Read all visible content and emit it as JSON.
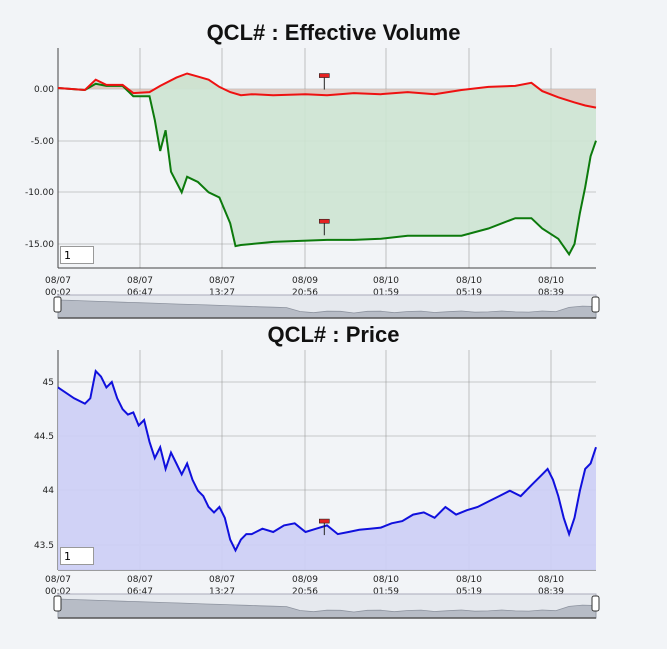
{
  "colors": {
    "ev_line": "#ee1111",
    "ev_fill": "#d8bcb0",
    "cum_line": "#0c7a0c",
    "cum_fill": "#cde4d2",
    "price_line": "#1010dd",
    "price_fill": "#cdd0f5",
    "grid": "#9a9a9a",
    "background": "#f2f4f7"
  },
  "chart_data": [
    {
      "type": "line",
      "title": "QCL# : Effective Volume",
      "x_ticks": [
        "08/07 00:02",
        "08/07 06:47",
        "08/07 13:27",
        "08/09 20:56",
        "08/10 01:59",
        "08/10 05:19",
        "08/10 08:39"
      ],
      "y_ticks": [
        "0.00",
        "-5.00",
        "-10.00",
        "-15.00"
      ],
      "ylim": [
        -17.2,
        3.9
      ],
      "input_value": "1",
      "series": [
        {
          "role": "upper",
          "x": [
            0,
            0.05,
            0.07,
            0.09,
            0.12,
            0.14,
            0.17,
            0.19,
            0.22,
            0.24,
            0.26,
            0.28,
            0.3,
            0.32,
            0.34,
            0.36,
            0.4,
            0.46,
            0.5,
            0.55,
            0.6,
            0.65,
            0.7,
            0.75,
            0.8,
            0.85,
            0.88,
            0.9,
            0.93,
            0.96,
            0.98,
            1
          ],
          "values": [
            0.1,
            -0.1,
            0.9,
            0.4,
            0.4,
            -0.4,
            -0.3,
            0.3,
            1.1,
            1.5,
            1.2,
            0.9,
            0.2,
            -0.3,
            -0.6,
            -0.5,
            -0.6,
            -0.5,
            -0.6,
            -0.4,
            -0.5,
            -0.3,
            -0.5,
            -0.1,
            0.2,
            0.3,
            0.6,
            -0.2,
            -0.8,
            -1.3,
            -1.6,
            -1.8
          ]
        },
        {
          "role": "lower",
          "x": [
            0,
            0.05,
            0.07,
            0.09,
            0.12,
            0.14,
            0.17,
            0.18,
            0.19,
            0.2,
            0.21,
            0.23,
            0.24,
            0.26,
            0.28,
            0.3,
            0.32,
            0.33,
            0.34,
            0.36,
            0.4,
            0.5,
            0.55,
            0.6,
            0.65,
            0.7,
            0.75,
            0.8,
            0.85,
            0.88,
            0.9,
            0.93,
            0.95,
            0.96,
            0.97,
            0.98,
            0.985,
            0.99,
            1
          ],
          "values": [
            0.1,
            -0.1,
            0.5,
            0.3,
            0.3,
            -0.7,
            -0.7,
            -3.0,
            -6.0,
            -4.0,
            -8.0,
            -10.0,
            -8.5,
            -9.0,
            -10.0,
            -10.5,
            -13.0,
            -15.2,
            -15.1,
            -15.0,
            -14.8,
            -14.6,
            -14.6,
            -14.5,
            -14.2,
            -14.2,
            -14.2,
            -13.5,
            -12.5,
            -12.5,
            -13.5,
            -14.5,
            -16.0,
            -15.0,
            -12.0,
            -9.5,
            -8.0,
            -6.5,
            -5.0
          ]
        }
      ],
      "markers": [
        {
          "x": 0.495,
          "y": 1.3
        },
        {
          "x": 0.495,
          "y": -12.8
        }
      ]
    },
    {
      "type": "area",
      "title": "QCL# : Price",
      "x_ticks": [
        "08/07 00:02",
        "08/07 06:47",
        "08/07 13:27",
        "08/09 20:56",
        "08/10 01:59",
        "08/10 05:19",
        "08/10 08:39"
      ],
      "y_ticks": [
        "45",
        "44.5",
        "44",
        "43.5"
      ],
      "ylim": [
        43.25,
        45.32
      ],
      "input_value": "1",
      "series": [
        {
          "name": "Price",
          "x": [
            0,
            0.03,
            0.05,
            0.06,
            0.07,
            0.08,
            0.09,
            0.1,
            0.11,
            0.12,
            0.13,
            0.14,
            0.15,
            0.16,
            0.17,
            0.18,
            0.19,
            0.2,
            0.21,
            0.22,
            0.23,
            0.24,
            0.25,
            0.26,
            0.27,
            0.28,
            0.29,
            0.3,
            0.31,
            0.32,
            0.33,
            0.34,
            0.35,
            0.36,
            0.38,
            0.4,
            0.42,
            0.44,
            0.46,
            0.48,
            0.5,
            0.52,
            0.54,
            0.56,
            0.58,
            0.6,
            0.62,
            0.64,
            0.66,
            0.68,
            0.7,
            0.72,
            0.74,
            0.76,
            0.78,
            0.8,
            0.82,
            0.84,
            0.86,
            0.88,
            0.89,
            0.9,
            0.91,
            0.92,
            0.93,
            0.94,
            0.95,
            0.96,
            0.97,
            0.98,
            0.99,
            1
          ],
          "values": [
            44.95,
            44.85,
            44.8,
            44.85,
            45.1,
            45.05,
            44.95,
            45.0,
            44.85,
            44.75,
            44.7,
            44.72,
            44.6,
            44.65,
            44.45,
            44.3,
            44.4,
            44.2,
            44.35,
            44.25,
            44.15,
            44.25,
            44.1,
            44.0,
            43.95,
            43.85,
            43.8,
            43.85,
            43.75,
            43.55,
            43.45,
            43.55,
            43.6,
            43.6,
            43.65,
            43.62,
            43.68,
            43.7,
            43.62,
            43.65,
            43.68,
            43.6,
            43.62,
            43.64,
            43.65,
            43.66,
            43.7,
            43.72,
            43.78,
            43.8,
            43.75,
            43.85,
            43.78,
            43.82,
            43.85,
            43.9,
            43.95,
            44.0,
            43.95,
            44.05,
            44.1,
            44.15,
            44.2,
            44.1,
            43.95,
            43.75,
            43.6,
            43.75,
            44.0,
            44.2,
            44.25,
            44.4
          ]
        }
      ],
      "markers": [
        {
          "x": 0.495,
          "y": 43.72
        }
      ]
    }
  ]
}
